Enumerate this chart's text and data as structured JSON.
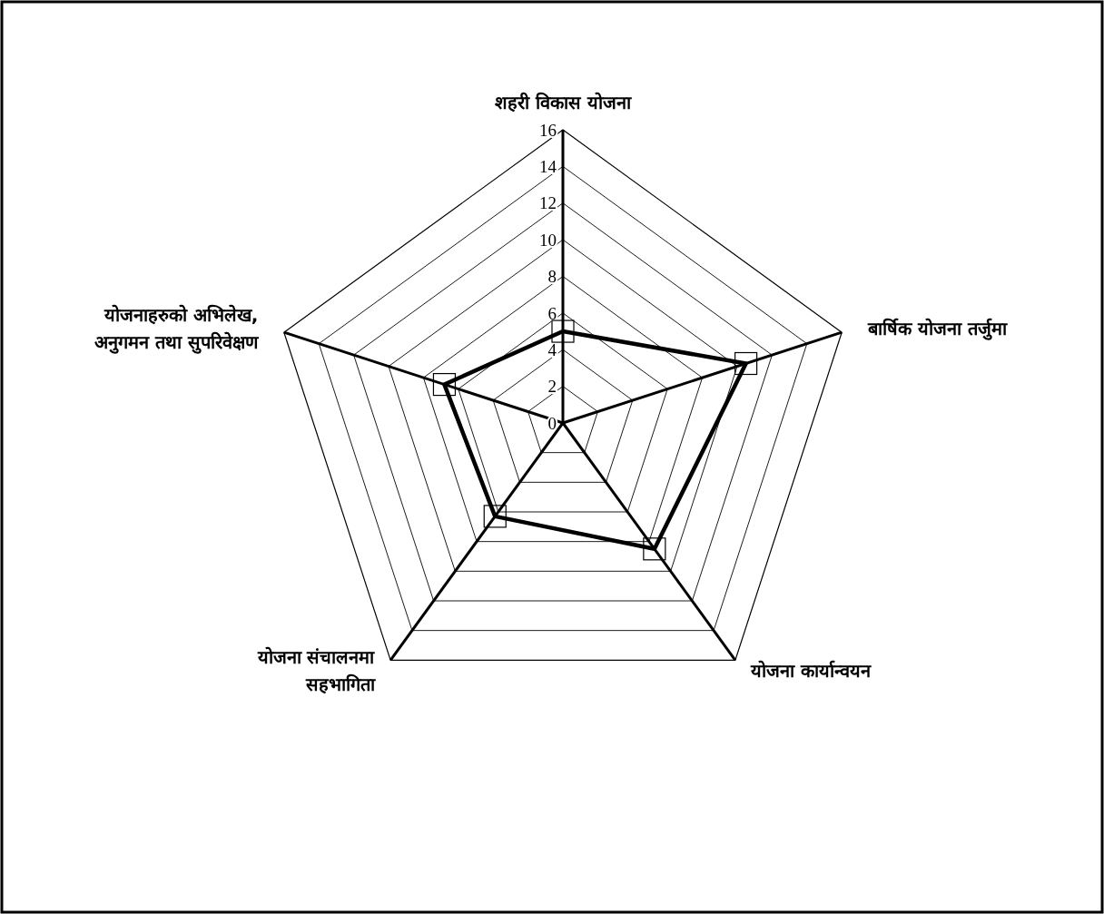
{
  "chart_data": {
    "type": "radar",
    "categories": [
      "शहरी विकास योजना",
      "बार्षिक योजना तर्जुमा",
      "योजना कार्यान्वयन",
      "योजना संचालनमा\nसहभागिता",
      "योजनाहरुको अभिलेख,\nअनुगमन तथा सुपरिवेक्षण"
    ],
    "series": [
      {
        "color": "#000000",
        "values": [
          5,
          10.5,
          8.5,
          6.3,
          6.8
        ]
      }
    ],
    "ylim": [
      0,
      16
    ],
    "yticks": [
      0,
      2,
      4,
      6,
      8,
      10,
      12,
      14,
      16
    ],
    "grid": true,
    "marker": "square"
  }
}
